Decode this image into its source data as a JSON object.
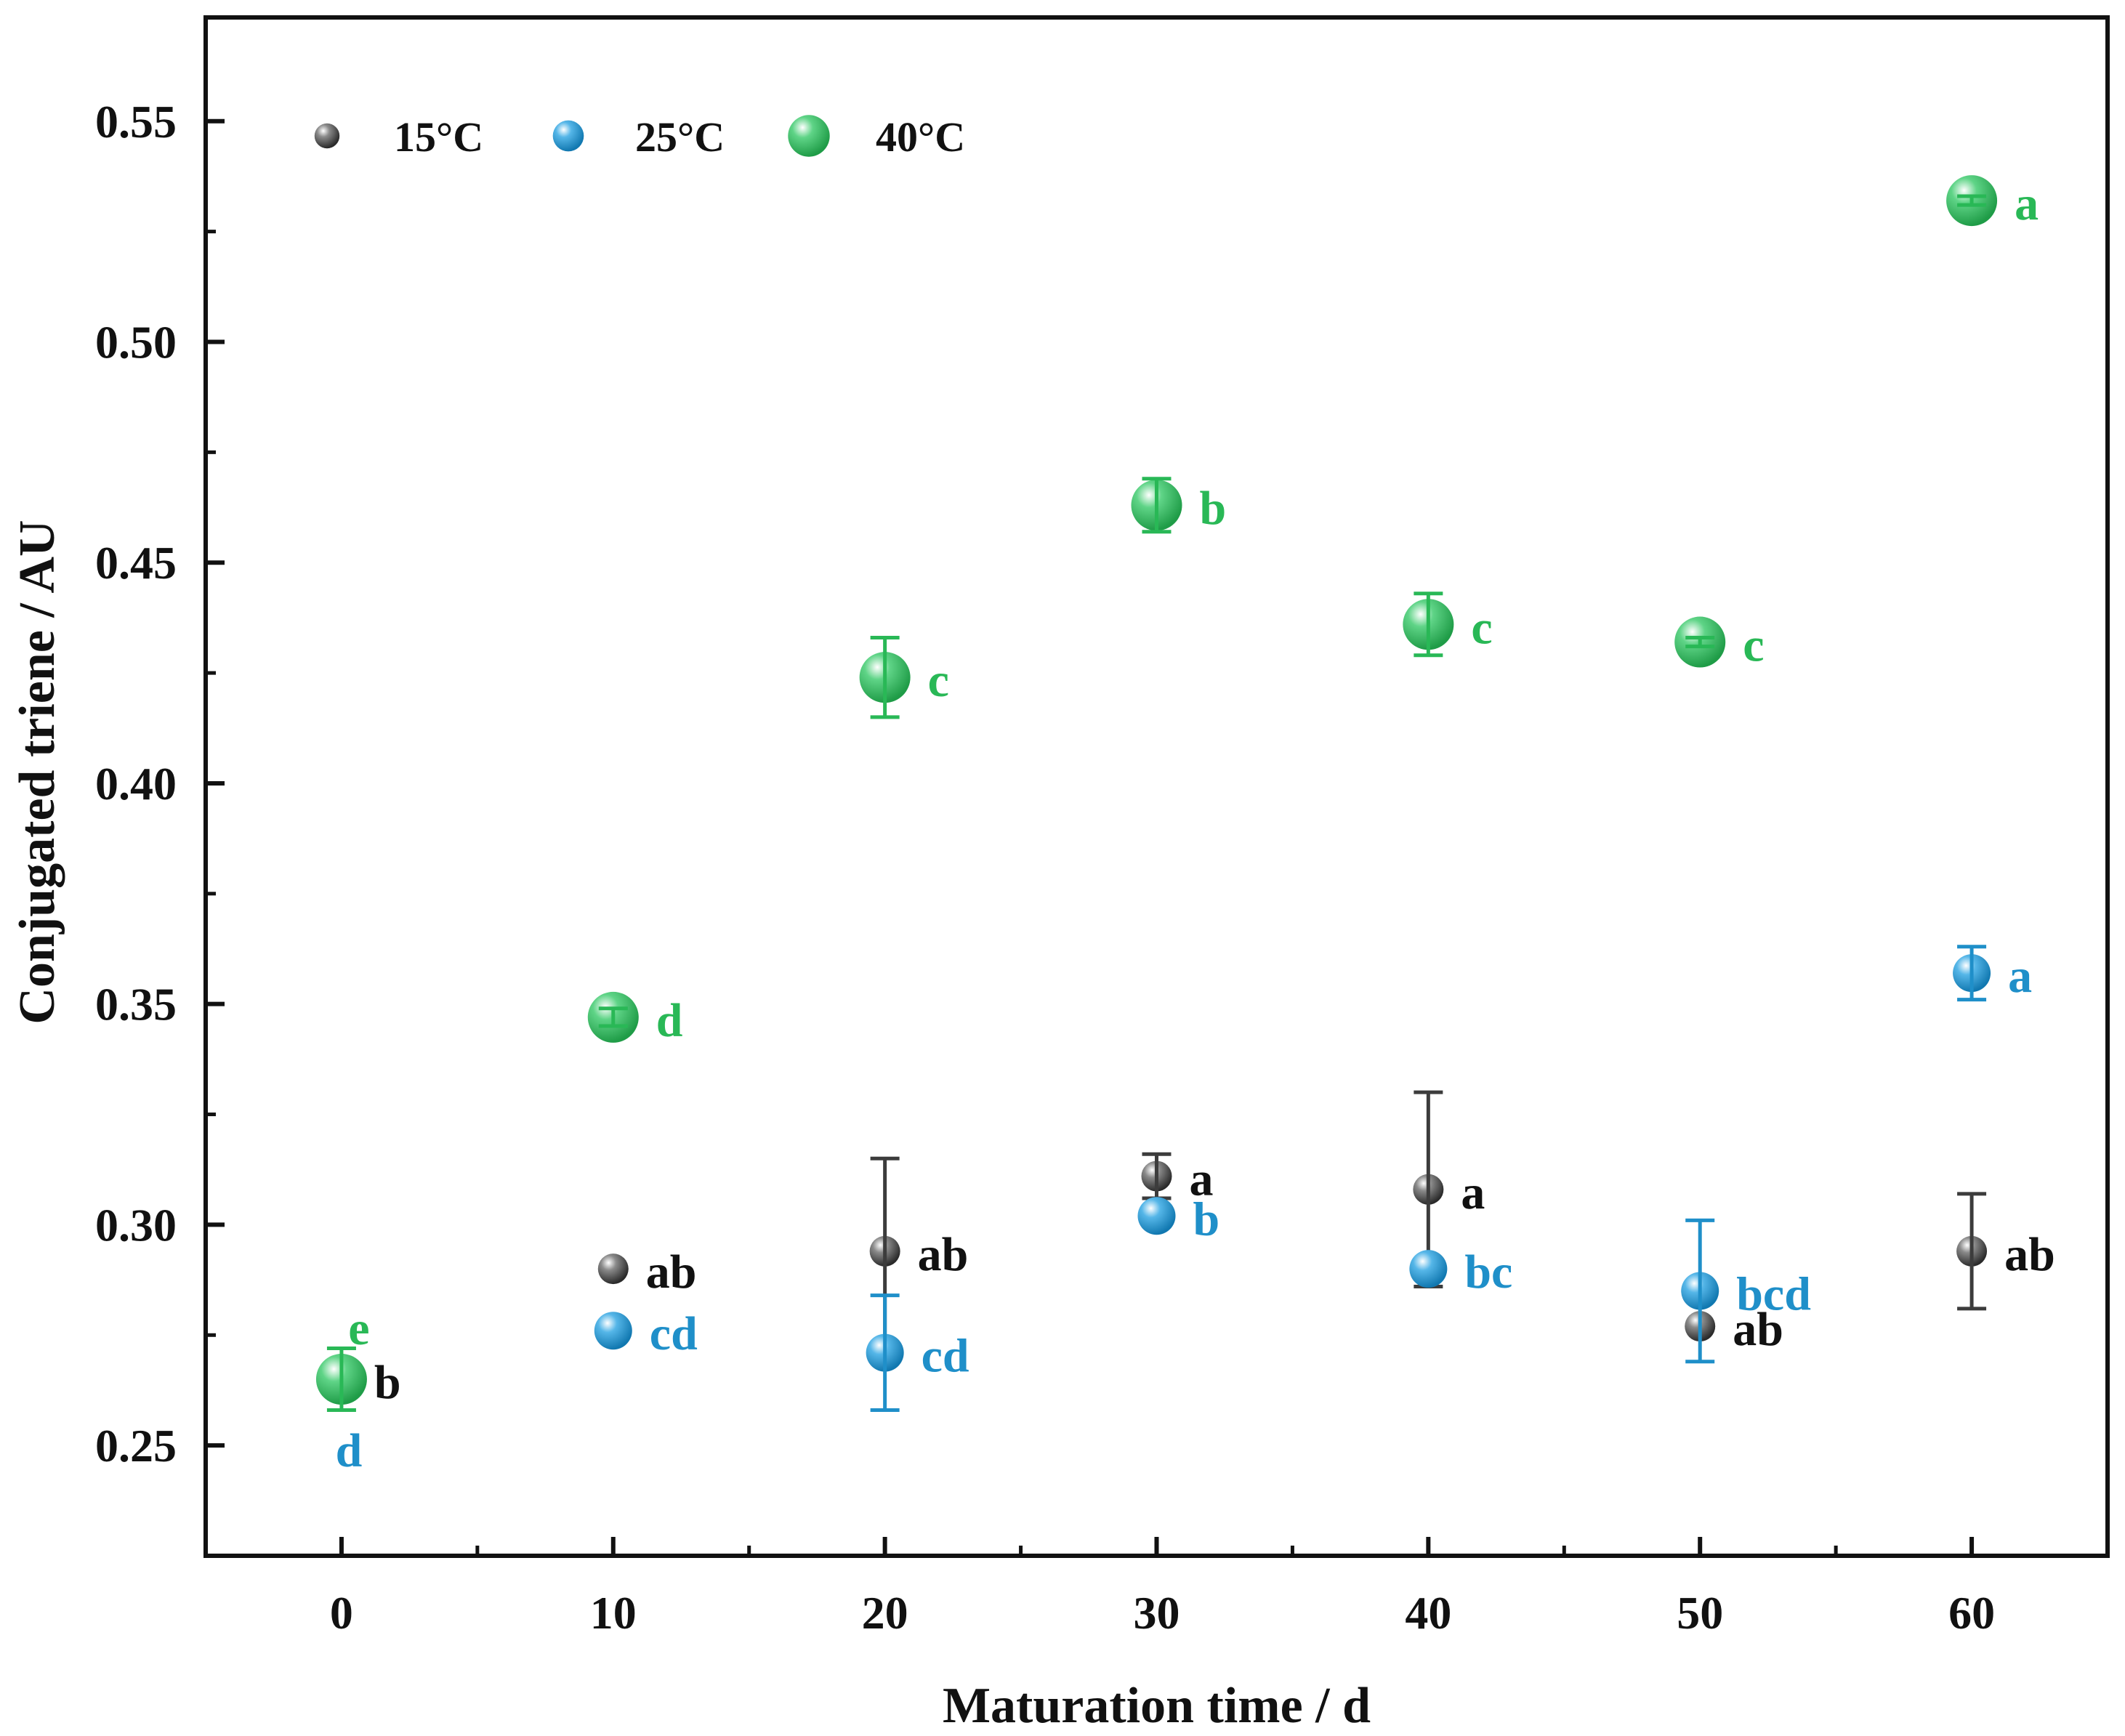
{
  "chart_data": {
    "type": "scatter",
    "title": "",
    "xlabel": "Maturation time / d",
    "ylabel": "Conjugated triene / AU",
    "xlim": [
      -5,
      65
    ],
    "ylim": [
      0.225,
      0.5735
    ],
    "xticks": [
      0,
      10,
      20,
      30,
      40,
      50,
      60
    ],
    "yticks": [
      0.25,
      0.3,
      0.35,
      0.4,
      0.45,
      0.5,
      0.55
    ],
    "xtick_labels": [
      "0",
      "10",
      "20",
      "30",
      "40",
      "50",
      "60"
    ],
    "ytick_labels": [
      "0.25",
      "0.30",
      "0.35",
      "0.40",
      "0.45",
      "0.50",
      "0.55"
    ],
    "legend_position": "top-left",
    "series": [
      {
        "name": "15°C",
        "color": "#3c3c3c",
        "marker_scale": "small",
        "points": [
          {
            "x": 0,
            "y": 0.265,
            "err": 0.0,
            "label": "b",
            "label_pos": "right"
          },
          {
            "x": 10,
            "y": 0.29,
            "err": 0.0,
            "label": "ab",
            "label_pos": "right"
          },
          {
            "x": 20,
            "y": 0.294,
            "err": 0.021,
            "label": "ab",
            "label_pos": "right"
          },
          {
            "x": 30,
            "y": 0.311,
            "err": 0.005,
            "label": "a",
            "label_pos": "right"
          },
          {
            "x": 40,
            "y": 0.308,
            "err": 0.022,
            "label": "a",
            "label_pos": "right"
          },
          {
            "x": 50,
            "y": 0.277,
            "err": 0.0,
            "label": "ab",
            "label_pos": "right"
          },
          {
            "x": 60,
            "y": 0.294,
            "err": 0.013,
            "label": "ab",
            "label_pos": "right"
          }
        ]
      },
      {
        "name": "25°C",
        "color": "#1f8fc9",
        "marker_scale": "medium",
        "points": [
          {
            "x": 0,
            "y": 0.265,
            "err": 0.0,
            "label": "d",
            "label_pos": "below"
          },
          {
            "x": 10,
            "y": 0.276,
            "err": 0.0,
            "label": "cd",
            "label_pos": "right"
          },
          {
            "x": 20,
            "y": 0.271,
            "err": 0.013,
            "label": "cd",
            "label_pos": "right"
          },
          {
            "x": 30,
            "y": 0.302,
            "err": 0.0,
            "label": "b",
            "label_pos": "right"
          },
          {
            "x": 40,
            "y": 0.29,
            "err": 0.0,
            "label": "bc",
            "label_pos": "right"
          },
          {
            "x": 50,
            "y": 0.285,
            "err": 0.016,
            "label": "bcd",
            "label_pos": "right"
          },
          {
            "x": 60,
            "y": 0.357,
            "err": 0.006,
            "label": "a",
            "label_pos": "right"
          }
        ]
      },
      {
        "name": "40°C",
        "color": "#29b856",
        "marker_scale": "large",
        "points": [
          {
            "x": 0,
            "y": 0.265,
            "err": 0.007,
            "label": "e",
            "label_pos": "above"
          },
          {
            "x": 10,
            "y": 0.347,
            "err": 0.002,
            "label": "d",
            "label_pos": "right"
          },
          {
            "x": 20,
            "y": 0.424,
            "err": 0.009,
            "label": "c",
            "label_pos": "right"
          },
          {
            "x": 30,
            "y": 0.463,
            "err": 0.006,
            "label": "b",
            "label_pos": "right"
          },
          {
            "x": 40,
            "y": 0.436,
            "err": 0.007,
            "label": "c",
            "label_pos": "right"
          },
          {
            "x": 50,
            "y": 0.432,
            "err": 0.001,
            "label": "c",
            "label_pos": "right"
          },
          {
            "x": 60,
            "y": 0.532,
            "err": 0.001,
            "label": "a",
            "label_pos": "right"
          }
        ]
      }
    ]
  }
}
